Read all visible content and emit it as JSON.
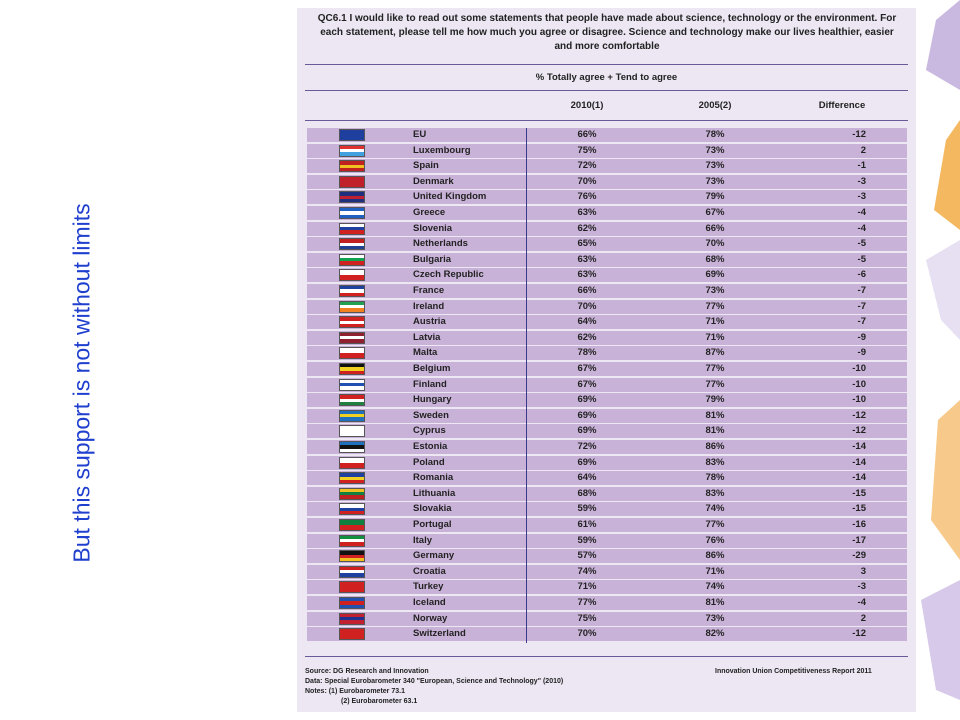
{
  "slide_title": "But this support is not without limits",
  "table": {
    "question": "QC6.1 I would like to read out some statements that people have made about science, technology or the environment. For each statement, please tell me how much you agree or disagree. Science and technology make our lives healthier, easier and more comfortable",
    "measure": "% Totally agree + Tend to agree",
    "columns": [
      "2010(1)",
      "2005(2)",
      "Difference"
    ],
    "rows": [
      [
        "EU",
        "66%",
        "78%",
        "-12"
      ],
      [
        "Luxembourg",
        "75%",
        "73%",
        "2"
      ],
      [
        "Spain",
        "72%",
        "73%",
        "-1"
      ],
      [
        "Denmark",
        "70%",
        "73%",
        "-3"
      ],
      [
        "United Kingdom",
        "76%",
        "79%",
        "-3"
      ],
      [
        "Greece",
        "63%",
        "67%",
        "-4"
      ],
      [
        "Slovenia",
        "62%",
        "66%",
        "-4"
      ],
      [
        "Netherlands",
        "65%",
        "70%",
        "-5"
      ],
      [
        "Bulgaria",
        "63%",
        "68%",
        "-5"
      ],
      [
        "Czech Republic",
        "63%",
        "69%",
        "-6"
      ],
      [
        "France",
        "66%",
        "73%",
        "-7"
      ],
      [
        "Ireland",
        "70%",
        "77%",
        "-7"
      ],
      [
        "Austria",
        "64%",
        "71%",
        "-7"
      ],
      [
        "Latvia",
        "62%",
        "71%",
        "-9"
      ],
      [
        "Malta",
        "78%",
        "87%",
        "-9"
      ],
      [
        "Belgium",
        "67%",
        "77%",
        "-10"
      ],
      [
        "Finland",
        "67%",
        "77%",
        "-10"
      ],
      [
        "Hungary",
        "69%",
        "79%",
        "-10"
      ],
      [
        "Sweden",
        "69%",
        "81%",
        "-12"
      ],
      [
        "Cyprus",
        "69%",
        "81%",
        "-12"
      ],
      [
        "Estonia",
        "72%",
        "86%",
        "-14"
      ],
      [
        "Poland",
        "69%",
        "83%",
        "-14"
      ],
      [
        "Romania",
        "64%",
        "78%",
        "-14"
      ],
      [
        "Lithuania",
        "68%",
        "83%",
        "-15"
      ],
      [
        "Slovakia",
        "59%",
        "74%",
        "-15"
      ],
      [
        "Portugal",
        "61%",
        "77%",
        "-16"
      ],
      [
        "Italy",
        "59%",
        "76%",
        "-17"
      ],
      [
        "Germany",
        "57%",
        "86%",
        "-29"
      ],
      [
        "Croatia",
        "74%",
        "71%",
        "3"
      ],
      [
        "Turkey",
        "71%",
        "74%",
        "-3"
      ],
      [
        "Iceland",
        "77%",
        "81%",
        "-4"
      ],
      [
        "Norway",
        "75%",
        "73%",
        "2"
      ],
      [
        "Switzerland",
        "70%",
        "82%",
        "-12"
      ]
    ],
    "source": "Source: DG Research and Innovation",
    "data_note": "Data: Special Eurobarometer 340 \"European, Science and Technology\" (2010)",
    "notes": [
      "Notes: (1) Eurobarometer 73.1",
      "(2) Eurobarometer 63.1"
    ],
    "report": "Innovation Union Competitiveness Report 2011"
  }
}
